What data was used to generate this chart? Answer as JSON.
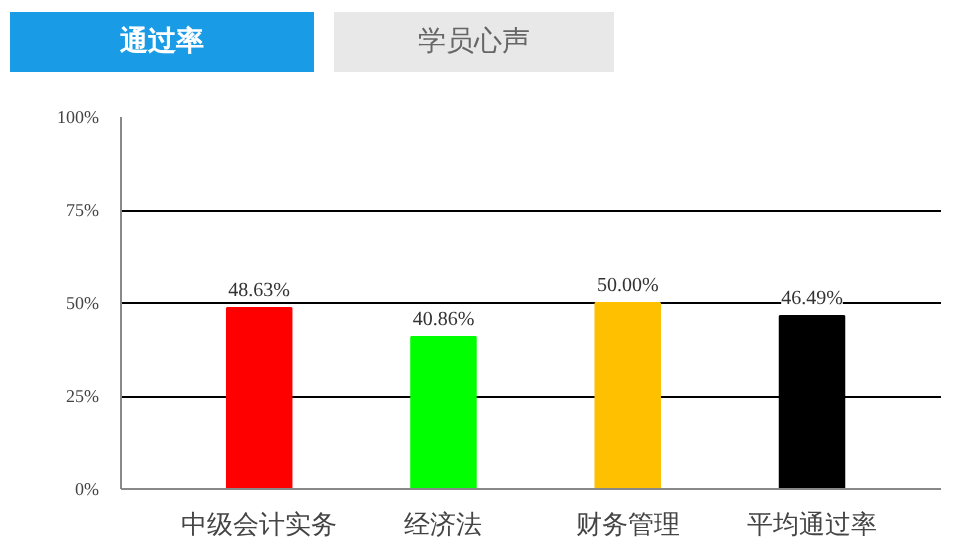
{
  "chart_data": {
    "type": "bar",
    "title": "通过率",
    "subtitle": "学员心声",
    "categories": [
      "中级会计实务",
      "经济法",
      "财务管理",
      "平均通过率"
    ],
    "values": [
      48.63,
      40.86,
      50.0,
      46.49
    ],
    "colors": [
      "#ff0000",
      "#00ff00",
      "#ffc000",
      "#000000"
    ],
    "value_labels": [
      "48.63%",
      "40.86%",
      "50.00%",
      "46.49%"
    ],
    "ylim": [
      0,
      100
    ],
    "yticks": [
      {
        "value": 0,
        "label": "0%"
      },
      {
        "value": 25,
        "label": "25%"
      },
      {
        "value": 50,
        "label": "50%"
      },
      {
        "value": 75,
        "label": "75%"
      },
      {
        "value": 100,
        "label": "100%"
      }
    ],
    "grid": "y"
  }
}
